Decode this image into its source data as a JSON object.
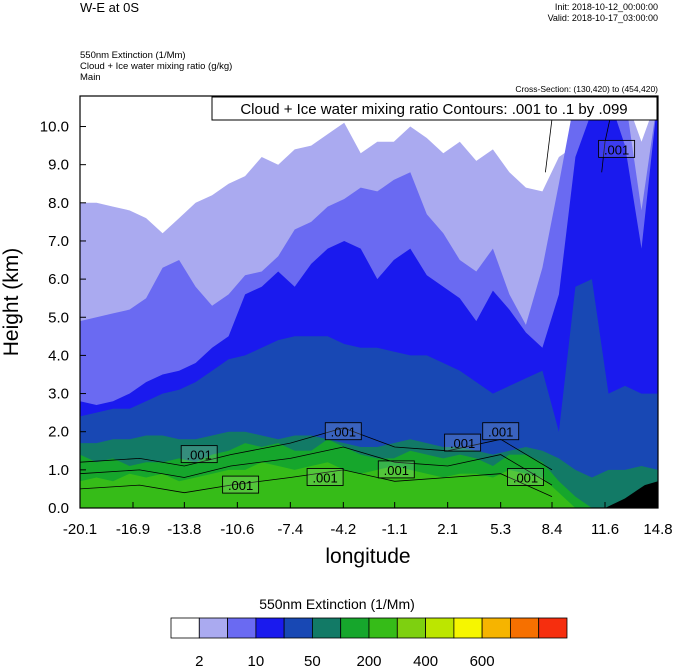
{
  "header": {
    "title": "W-E at 0S",
    "init": "Init: 2018-10-12_00:00:00",
    "valid": "Valid: 2018-10-17_03:00:00",
    "fields": [
      "550nm Extinction   (1/Mm)",
      "Cloud + Ice water mixing ratio   (g/kg)",
      "Main"
    ],
    "cross_section": "Cross-Section: (130,420) to (454,420)"
  },
  "chart_data": {
    "type": "heatmap",
    "title": "W-E at 0S",
    "xlabel": "longitude",
    "ylabel": "Height (km)",
    "x_ticks": [
      "-20.1",
      "-16.9",
      "-13.8",
      "-10.6",
      "-7.4",
      "-4.2",
      "-1.1",
      "2.1",
      "5.3",
      "8.4",
      "11.6",
      "14.8"
    ],
    "xlim": [
      -20.1,
      14.8
    ],
    "y_ticks": [
      "0.0",
      "1.0",
      "2.0",
      "3.0",
      "4.0",
      "5.0",
      "6.0",
      "7.0",
      "8.0",
      "9.0",
      "10.0"
    ],
    "ylim": [
      0,
      10.8
    ],
    "contour_info": "Cloud + Ice water mixing ratio Contours: .001 to .1 by .099",
    "contour_labels": [
      {
        "text": ".001",
        "lon": -12.9,
        "h": 1.4
      },
      {
        "text": ".001",
        "lon": -10.4,
        "h": 0.6
      },
      {
        "text": ".001",
        "lon": -5.3,
        "h": 0.8
      },
      {
        "text": ".001",
        "lon": -4.2,
        "h": 2.0
      },
      {
        "text": ".001",
        "lon": -1.0,
        "h": 1.0
      },
      {
        "text": ".001",
        "lon": 3.0,
        "h": 1.7
      },
      {
        "text": ".001",
        "lon": 5.3,
        "h": 2.0
      },
      {
        "text": ".001",
        "lon": 6.8,
        "h": 0.8
      },
      {
        "text": ".001",
        "lon": 12.3,
        "h": 9.4
      }
    ],
    "colorbar": {
      "title": "550nm Extinction  (1/Mm)",
      "colors": [
        "#ffffff",
        "#aaaaf0",
        "#6a6af2",
        "#1a1aee",
        "#1848b4",
        "#127a66",
        "#16a62c",
        "#36bc18",
        "#7ed010",
        "#bce600",
        "#f6f600",
        "#f6b400",
        "#f67000",
        "#f62e0e"
      ],
      "labels": [
        "2",
        "10",
        "50",
        "200",
        "400",
        "600"
      ]
    },
    "levels": {
      "top_white": [
        10.8,
        10.8,
        10.8,
        10.8,
        10.8,
        10.8,
        10.8,
        10.8,
        10.8,
        10.8,
        10.8,
        10.8,
        10.8,
        10.8,
        10.8,
        10.8,
        10.8,
        10.8,
        10.8,
        10.8,
        10.8,
        10.8,
        10.8,
        10.8,
        10.8,
        10.8,
        10.8,
        10.8,
        10.8,
        10.8,
        10.8,
        10.8,
        10.8,
        10.8,
        10.8,
        10.8
      ],
      "top_light": [
        8.0,
        8.0,
        7.9,
        7.8,
        7.6,
        7.2,
        7.6,
        8.0,
        8.2,
        8.5,
        8.7,
        9.2,
        9.0,
        9.4,
        9.5,
        9.8,
        10.1,
        9.3,
        9.6,
        9.6,
        10.0,
        9.7,
        9.3,
        9.6,
        9.1,
        9.4,
        8.8,
        8.4,
        8.3,
        9.2,
        9.5,
        10.8,
        10.8,
        10.8,
        9.6,
        10.8
      ],
      "top_medium": [
        4.9,
        5.0,
        5.1,
        5.2,
        5.5,
        6.3,
        6.5,
        5.8,
        5.3,
        5.6,
        6.1,
        6.2,
        6.6,
        7.3,
        7.5,
        7.9,
        8.1,
        8.4,
        8.3,
        8.6,
        8.8,
        7.7,
        7.2,
        6.5,
        6.2,
        6.8,
        5.6,
        4.8,
        6.3,
        8.5,
        10.8,
        10.8,
        10.8,
        10.8,
        7.8,
        10.8
      ],
      "top_blue": [
        2.8,
        2.7,
        2.8,
        3.0,
        3.3,
        3.5,
        3.6,
        3.8,
        4.2,
        4.5,
        5.6,
        5.8,
        6.2,
        5.8,
        6.4,
        6.8,
        7.0,
        6.8,
        6.0,
        6.5,
        6.8,
        6.1,
        5.8,
        5.5,
        4.9,
        5.7,
        5.2,
        4.6,
        4.2,
        5.6,
        9.2,
        10.4,
        10.8,
        9.5,
        6.8,
        10.8
      ],
      "top_darkblue": [
        2.4,
        2.5,
        2.6,
        2.6,
        2.8,
        3.0,
        3.1,
        3.3,
        3.6,
        3.9,
        4.0,
        4.2,
        4.4,
        4.5,
        4.5,
        4.5,
        4.3,
        4.2,
        4.2,
        4.1,
        4.0,
        4.0,
        3.8,
        3.6,
        3.3,
        3.0,
        3.2,
        3.4,
        3.6,
        2.0,
        5.8,
        6.0,
        3.0,
        3.2,
        3.0,
        3.0
      ],
      "top_teal": [
        1.7,
        1.7,
        1.8,
        1.8,
        1.9,
        1.9,
        1.8,
        1.8,
        1.9,
        2.0,
        2.0,
        1.9,
        1.8,
        1.9,
        1.9,
        1.8,
        1.7,
        1.6,
        1.6,
        1.7,
        1.8,
        1.7,
        1.6,
        1.6,
        1.5,
        1.4,
        1.5,
        1.6,
        1.5,
        1.3,
        1.0,
        0.8,
        1.0,
        1.0,
        1.1,
        1.0
      ],
      "top_green": [
        1.4,
        1.2,
        1.3,
        1.1,
        1.2,
        1.2,
        1.3,
        1.2,
        1.4,
        1.5,
        1.7,
        1.6,
        1.7,
        1.5,
        1.5,
        1.8,
        1.6,
        1.4,
        1.3,
        1.3,
        1.5,
        1.4,
        1.3,
        1.4,
        1.3,
        1.1,
        1.4,
        1.4,
        1.2,
        0.7,
        0.3,
        0.0,
        0.0,
        0.0,
        0.0,
        0.0
      ],
      "top_lightgreen": [
        0.7,
        0.8,
        0.7,
        0.9,
        0.8,
        0.9,
        0.7,
        0.8,
        0.9,
        1.0,
        1.0,
        1.2,
        1.1,
        1.0,
        1.1,
        1.2,
        1.0,
        0.9,
        1.0,
        1.1,
        1.0,
        0.9,
        0.8,
        0.9,
        0.9,
        0.8,
        1.0,
        0.9,
        0.8,
        0.4,
        0.0,
        0.0,
        0.0,
        0.0,
        0.0,
        0.0
      ]
    }
  }
}
